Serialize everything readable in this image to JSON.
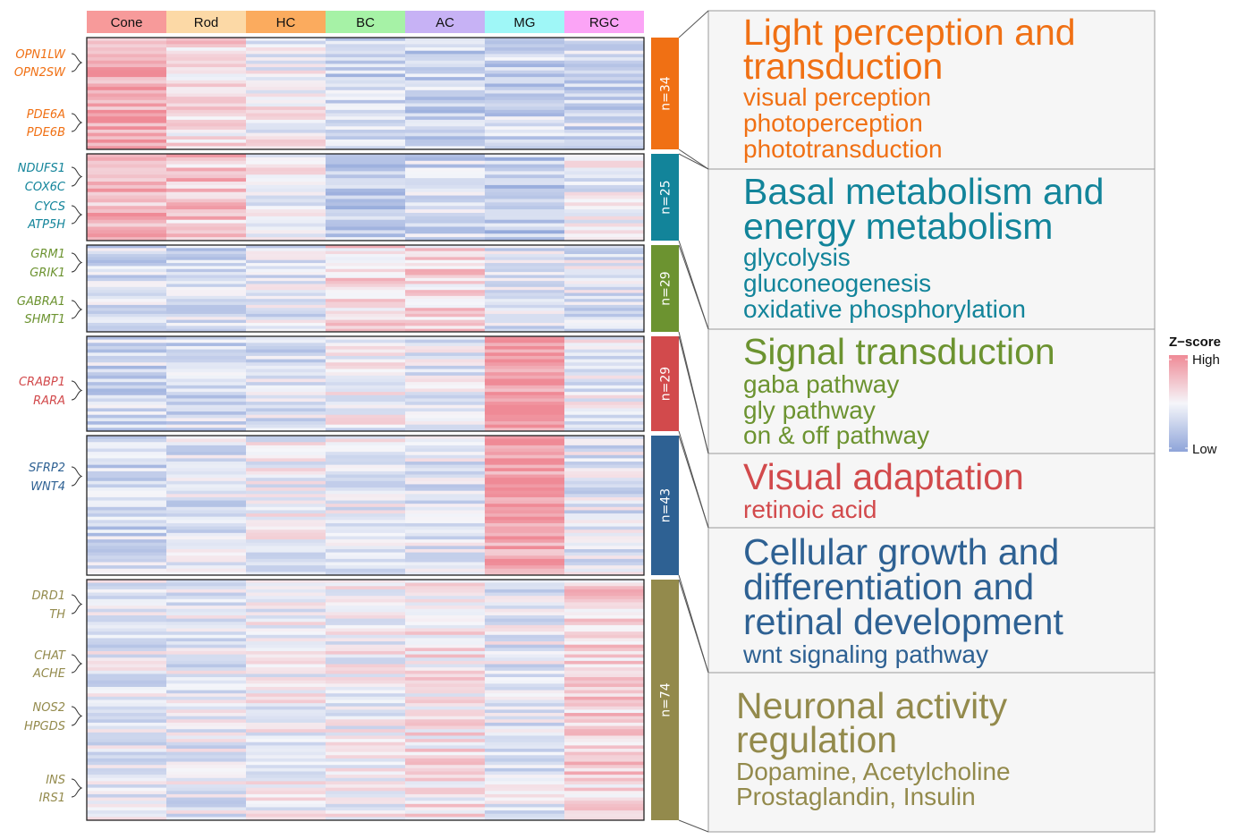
{
  "chart_data": {
    "type": "heatmap",
    "columns": [
      "Cone",
      "Rod",
      "HC",
      "BC",
      "AC",
      "MG",
      "RGC"
    ],
    "column_colors": [
      "#f79a9a",
      "#fcd9a6",
      "#fbab5e",
      "#a6f2a6",
      "#c7b2f5",
      "#9ff7f7",
      "#fba4f6"
    ],
    "colorscale": {
      "high": "#ef8a96",
      "mid": "#f5f6fa",
      "low": "#8ea4d9"
    },
    "legend": {
      "title": "Z−score",
      "high_label": "High",
      "low_label": "Low",
      "position": "right"
    },
    "clusters": [
      {
        "id": "c1",
        "n_label": "n=34",
        "n": 34,
        "color": "#f07014",
        "profile": [
          0.75,
          0.25,
          0.0,
          -0.4,
          -0.4,
          -0.4,
          -0.35
        ],
        "genes": [
          {
            "labels": [
              "OPN1LW",
              "OPN2SW"
            ]
          },
          {
            "labels": [
              "PDE6A",
              "PDE6B"
            ]
          }
        ],
        "title": [
          "Light perception and",
          "transduction"
        ],
        "terms": [
          "visual perception",
          "photoperception",
          "phototransduction"
        ]
      },
      {
        "id": "c2",
        "n_label": "n=25",
        "n": 25,
        "color": "#12849a",
        "profile": [
          0.6,
          0.45,
          -0.05,
          -0.45,
          -0.35,
          -0.5,
          -0.1
        ],
        "genes": [
          {
            "labels": [
              "NDUFS1",
              "COX6C"
            ]
          },
          {
            "labels": [
              "CYCS",
              "ATP5H"
            ]
          }
        ],
        "title": [
          "Basal metabolism and",
          "energy metabolism"
        ],
        "terms": [
          "glycolysis",
          "gluconeogenesis",
          "oxidative phosphorylation"
        ]
      },
      {
        "id": "c3",
        "n_label": "n=29",
        "n": 29,
        "color": "#6c9330",
        "profile": [
          -0.3,
          -0.3,
          -0.2,
          0.3,
          0.3,
          -0.2,
          -0.2
        ],
        "genes": [
          {
            "labels": [
              "GRM1",
              "GRIK1"
            ]
          },
          {
            "labels": [
              "GABRA1",
              "SHMT1"
            ]
          }
        ],
        "title": [
          "Signal transduction"
        ],
        "terms": [
          "gaba pathway",
          "gly pathway",
          "on & off pathway"
        ]
      },
      {
        "id": "c4",
        "n_label": "n=29",
        "n": 29,
        "color": "#d24a4c",
        "profile": [
          -0.35,
          -0.35,
          -0.25,
          -0.05,
          -0.15,
          0.85,
          -0.1
        ],
        "genes": [
          {
            "labels": [
              "CRABP1",
              "RARA"
            ]
          }
        ],
        "title": [
          "Visual adaptation"
        ],
        "terms": [
          "retinoic acid"
        ]
      },
      {
        "id": "c5",
        "n_label": "n=43",
        "n": 43,
        "color": "#2e6193",
        "profile": [
          -0.35,
          -0.25,
          -0.05,
          -0.1,
          -0.2,
          0.8,
          -0.2
        ],
        "genes": [
          {
            "labels": [
              "SFRP2",
              "WNT4"
            ]
          }
        ],
        "title": [
          "Cellular growth and",
          "differentiation and",
          "retinal development"
        ],
        "terms": [
          "wnt signaling pathway"
        ]
      },
      {
        "id": "c6",
        "n_label": "n=74",
        "n": 74,
        "color": "#938a4c",
        "profile": [
          -0.15,
          -0.15,
          0.0,
          0.0,
          0.15,
          -0.15,
          0.35
        ],
        "genes": [
          {
            "labels": [
              "DRD1",
              "TH"
            ]
          },
          {
            "labels": [
              "CHAT",
              "ACHE"
            ]
          },
          {
            "labels": [
              "NOS2",
              "HPGDS"
            ]
          },
          {
            "labels": [
              "INS",
              "IRS1"
            ]
          }
        ],
        "title": [
          "Neuronal activity",
          "regulation"
        ],
        "terms": [
          "Dopamine, Acetylcholine",
          "Prostaglandin, Insulin"
        ]
      }
    ]
  }
}
